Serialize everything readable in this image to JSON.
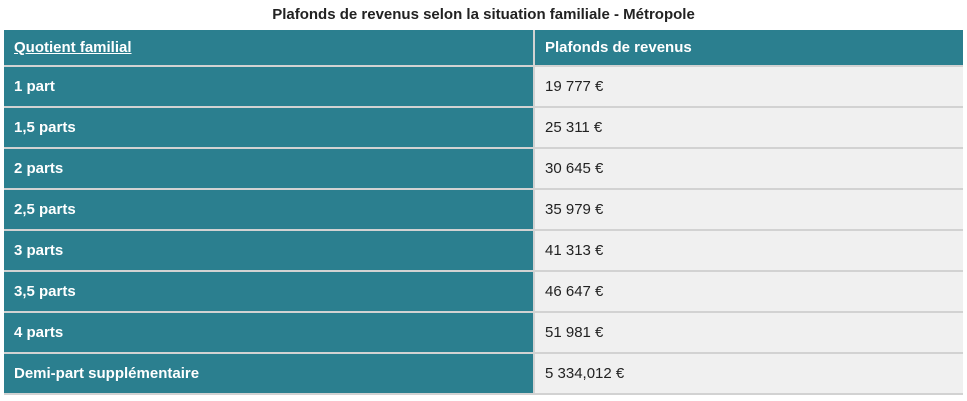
{
  "title": "Plafonds de revenus selon la situation familiale - Métropole",
  "header": {
    "col_quotient": "Quotient familial",
    "col_plafonds": "Plafonds de revenus"
  },
  "rows": [
    {
      "quotient": "1 part",
      "plafond": "19 777 €"
    },
    {
      "quotient": "1,5 parts",
      "plafond": "25 311 €"
    },
    {
      "quotient": "2 parts",
      "plafond": "30 645 €"
    },
    {
      "quotient": "2,5 parts",
      "plafond": "35 979 €"
    },
    {
      "quotient": "3 parts",
      "plafond": "41 313 €"
    },
    {
      "quotient": "3,5 parts",
      "plafond": "46 647 €"
    },
    {
      "quotient": "4 parts",
      "plafond": "51 981 €"
    },
    {
      "quotient": "Demi-part supplémentaire",
      "plafond": "5 334,012 €"
    }
  ],
  "colors": {
    "header_bg": "#2b7f8f",
    "cell_bg": "#f0f0f0"
  }
}
